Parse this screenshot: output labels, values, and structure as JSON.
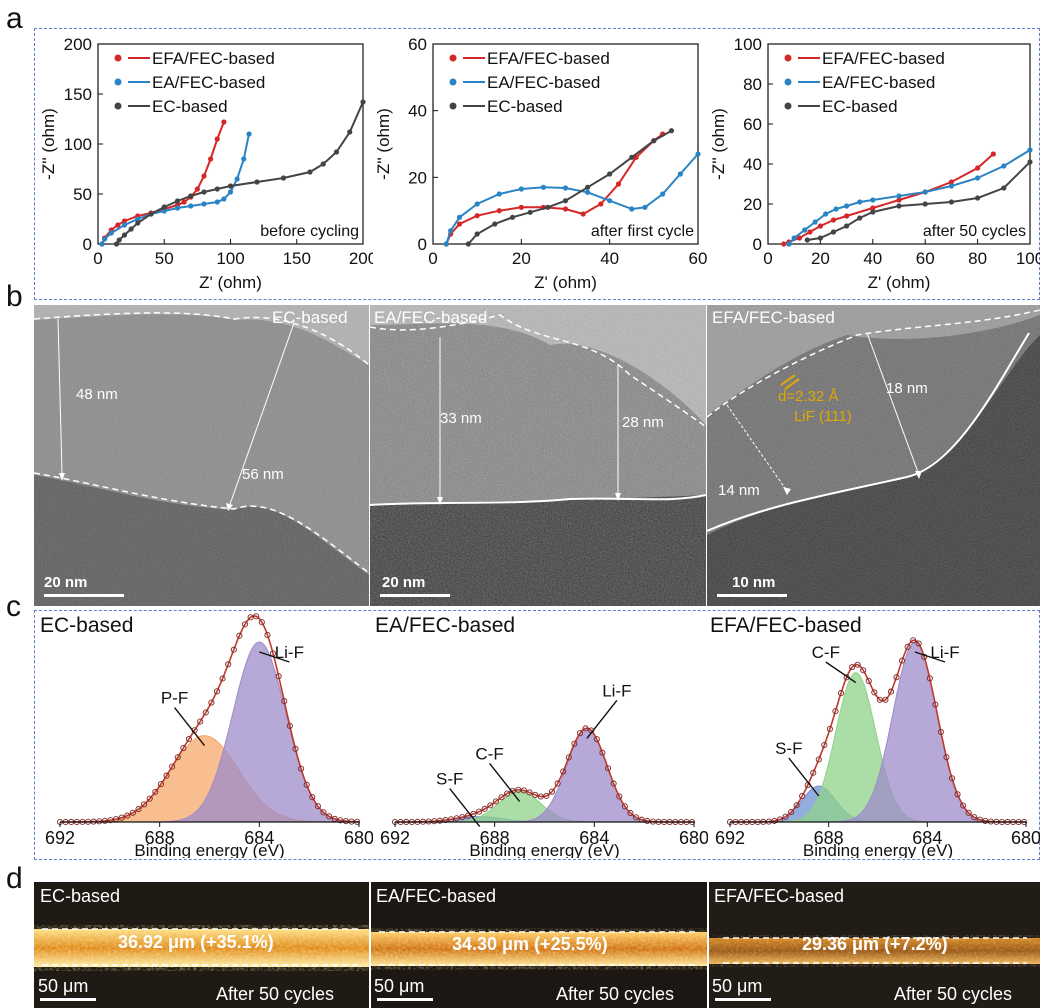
{
  "panel_letters": {
    "a": "a",
    "b": "b",
    "c": "c",
    "d": "d"
  },
  "colors": {
    "efa": "#d62728",
    "ea": "#2a84c4",
    "ec": "#444444",
    "pf": "#f5a86a",
    "lif": "#9d8bc9",
    "cf": "#8fd18a",
    "sf": "#6f93d3",
    "envelope": "#c0392b",
    "gold": "#e0a800"
  },
  "chart_data": [
    {
      "type": "line",
      "panel": "a-1",
      "xlabel": "Z' (ohm)",
      "ylabel": "-Z'' (ohm)",
      "xlim": [
        0,
        200
      ],
      "ylim": [
        0,
        200
      ],
      "xticks": [
        "0",
        "50",
        "100",
        "150",
        "200"
      ],
      "yticks": [
        "0",
        "50",
        "100",
        "150",
        "200"
      ],
      "annotation": "before cycling",
      "legend_position": "top-left",
      "series": [
        {
          "name": "EFA/FEC-based",
          "color": "#d62728",
          "x": [
            3,
            5,
            10,
            15,
            20,
            30,
            40,
            50,
            60,
            65,
            70,
            75,
            80,
            85,
            90,
            95
          ],
          "y": [
            0,
            6,
            14,
            19,
            23,
            28,
            31,
            35,
            39,
            42,
            47,
            55,
            68,
            85,
            105,
            122
          ]
        },
        {
          "name": "EA/FEC-based",
          "color": "#2a84c4",
          "x": [
            3,
            5,
            10,
            20,
            30,
            40,
            50,
            60,
            70,
            80,
            90,
            95,
            100,
            105,
            110,
            114
          ],
          "y": [
            0,
            5,
            11,
            19,
            25,
            30,
            33,
            36,
            38,
            40,
            42,
            45,
            52,
            65,
            85,
            110
          ]
        },
        {
          "name": "EC-based",
          "color": "#444444",
          "x": [
            14,
            16,
            20,
            25,
            30,
            40,
            50,
            60,
            70,
            80,
            90,
            100,
            120,
            140,
            160,
            170,
            180,
            190,
            200
          ],
          "y": [
            0,
            4,
            9,
            15,
            21,
            30,
            37,
            43,
            48,
            52,
            55,
            58,
            62,
            66,
            72,
            80,
            92,
            112,
            142
          ]
        }
      ]
    },
    {
      "type": "line",
      "panel": "a-2",
      "xlabel": "Z' (ohm)",
      "ylabel": "-Z'' (ohm)",
      "xlim": [
        0,
        60
      ],
      "ylim": [
        0,
        60
      ],
      "xticks": [
        "0",
        "20",
        "40",
        "60"
      ],
      "yticks": [
        "0",
        "20",
        "40",
        "60"
      ],
      "annotation": "after first cycle",
      "legend_position": "top-left",
      "series": [
        {
          "name": "EFA/FEC-based",
          "color": "#d62728",
          "x": [
            3,
            4,
            6,
            10,
            15,
            20,
            25,
            30,
            34,
            38,
            42,
            46,
            50,
            52
          ],
          "y": [
            0,
            3,
            6,
            8.5,
            10,
            11,
            11,
            10.5,
            9,
            12,
            18,
            26,
            31,
            33
          ]
        },
        {
          "name": "EA/FEC-based",
          "color": "#2a84c4",
          "x": [
            3,
            4,
            6,
            10,
            15,
            20,
            25,
            30,
            35,
            40,
            45,
            48,
            52,
            56,
            60
          ],
          "y": [
            0,
            4,
            8,
            12,
            15,
            16.5,
            17,
            16.8,
            15.5,
            13,
            10.5,
            11,
            15,
            21,
            27
          ]
        },
        {
          "name": "EC-based",
          "color": "#444444",
          "x": [
            8,
            10,
            14,
            18,
            22,
            26,
            30,
            35,
            40,
            45,
            50,
            54
          ],
          "y": [
            0,
            3,
            6,
            8,
            9.5,
            11,
            13,
            17,
            21,
            26,
            31,
            34
          ]
        }
      ]
    },
    {
      "type": "line",
      "panel": "a-3",
      "xlabel": "Z' (ohm)",
      "ylabel": "-Z'' (ohm)",
      "xlim": [
        0,
        100
      ],
      "ylim": [
        0,
        100
      ],
      "xticks": [
        "0",
        "20",
        "40",
        "60",
        "80",
        "100"
      ],
      "yticks": [
        "0",
        "20",
        "40",
        "60",
        "80",
        "100"
      ],
      "annotation": "after 50 cycles",
      "legend_position": "top-left",
      "series": [
        {
          "name": "EFA/FEC-based",
          "color": "#d62728",
          "x": [
            6,
            8,
            12,
            16,
            20,
            25,
            30,
            40,
            50,
            60,
            70,
            80,
            86
          ],
          "y": [
            0,
            1,
            3,
            6,
            9,
            12,
            14,
            18,
            22,
            26,
            31,
            38,
            45
          ]
        },
        {
          "name": "EA/FEC-based",
          "color": "#2a84c4",
          "x": [
            8,
            10,
            14,
            18,
            22,
            26,
            30,
            35,
            40,
            50,
            60,
            70,
            80,
            90,
            100
          ],
          "y": [
            0,
            3,
            7,
            11,
            15,
            17.5,
            19,
            21,
            22,
            24,
            26,
            29,
            33,
            39,
            47
          ]
        },
        {
          "name": "EC-based",
          "color": "#444444",
          "x": [
            15,
            20,
            25,
            30,
            35,
            40,
            50,
            60,
            70,
            80,
            90,
            100
          ],
          "y": [
            2,
            3,
            6,
            9,
            13,
            16,
            19,
            20,
            21,
            23,
            28,
            41
          ]
        }
      ]
    },
    {
      "type": "area",
      "panel": "c-1",
      "title": "EC-based",
      "xlabel": "Binding energy (eV)",
      "xlim": [
        692,
        680
      ],
      "x_reversed": true,
      "xticks": [
        "692",
        "688",
        "684",
        "680"
      ],
      "peaks": [
        {
          "name": "P-F",
          "center": 686.2,
          "height": 0.48,
          "fwhm": 3.2,
          "color": "#f5a86a"
        },
        {
          "name": "Li-F",
          "center": 684.0,
          "height": 1.0,
          "fwhm": 2.5,
          "color": "#9d8bc9"
        }
      ]
    },
    {
      "type": "area",
      "panel": "c-2",
      "title": "EA/FEC-based",
      "xlabel": "Binding energy (eV)",
      "xlim": [
        692,
        680
      ],
      "x_reversed": true,
      "xticks": [
        "692",
        "688",
        "684",
        "680"
      ],
      "peaks": [
        {
          "name": "S-F",
          "center": 688.6,
          "height": 0.03,
          "fwhm": 2.2,
          "color": "#6f93d3"
        },
        {
          "name": "C-F",
          "center": 687.0,
          "height": 0.17,
          "fwhm": 2.0,
          "color": "#8fd18a"
        },
        {
          "name": "Li-F",
          "center": 684.3,
          "height": 0.52,
          "fwhm": 1.9,
          "color": "#9d8bc9"
        }
      ]
    },
    {
      "type": "area",
      "panel": "c-3",
      "title": "EFA/FEC-based",
      "xlabel": "Binding energy (eV)",
      "xlim": [
        692,
        680
      ],
      "x_reversed": true,
      "xticks": [
        "692",
        "688",
        "684",
        "680"
      ],
      "peaks": [
        {
          "name": "S-F",
          "center": 688.4,
          "height": 0.2,
          "fwhm": 1.6,
          "color": "#6f93d3"
        },
        {
          "name": "C-F",
          "center": 686.9,
          "height": 0.83,
          "fwhm": 1.9,
          "color": "#8fd18a"
        },
        {
          "name": "Li-F",
          "center": 684.5,
          "height": 1.0,
          "fwhm": 2.1,
          "color": "#9d8bc9"
        }
      ]
    }
  ],
  "tem_panels": [
    {
      "title": "EC-based",
      "measurements": [
        "48 nm",
        "56 nm"
      ],
      "scale_bar": "20 nm"
    },
    {
      "title": "EA/FEC-based",
      "measurements": [
        "33 nm",
        "28 nm"
      ],
      "scale_bar": "20 nm"
    },
    {
      "title": "EFA/FEC-based",
      "measurements": [
        "18 nm",
        "14 nm"
      ],
      "lattice_d": "d=2.32 Å",
      "lattice_plane": "LiF (111)",
      "scale_bar": "10 nm"
    }
  ],
  "optical_panels": [
    {
      "title": "EC-based",
      "thickness": "36.92 μm (+35.1%)",
      "scale_bar": "50 μm",
      "caption": "After 50 cycles"
    },
    {
      "title": "EA/FEC-based",
      "thickness": "34.30 μm (+25.5%)",
      "scale_bar": "50 μm",
      "caption": "After 50 cycles"
    },
    {
      "title": "EFA/FEC-based",
      "thickness": "29.36 μm (+7.2%)",
      "scale_bar": "50 μm",
      "caption": "After 50 cycles"
    }
  ]
}
